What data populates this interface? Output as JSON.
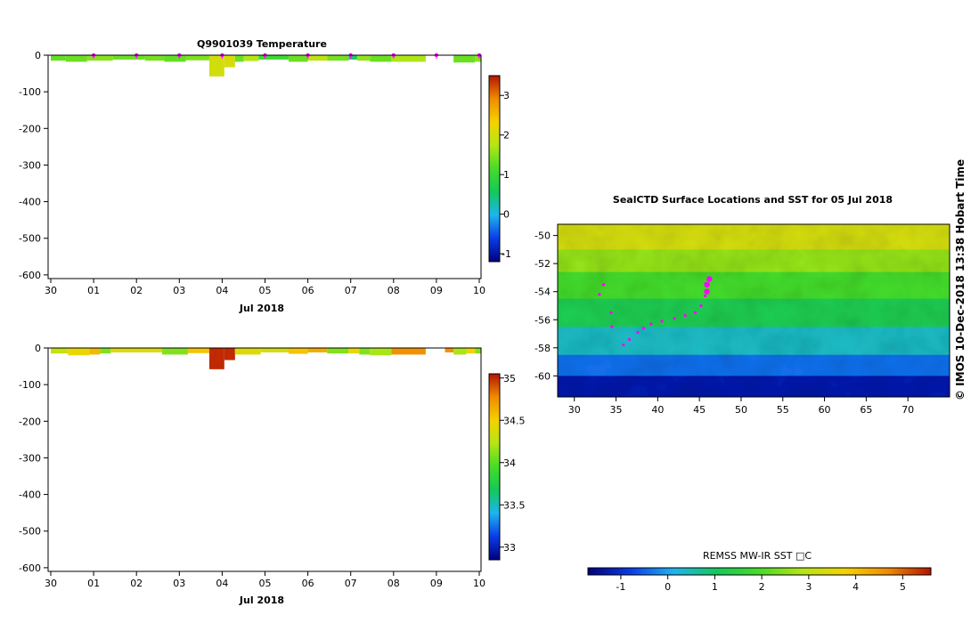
{
  "temp_panel": {
    "title": "Q9901039  Temperature",
    "xlabel": "Jul 2018",
    "x_ticks": [
      "30",
      "01",
      "02",
      "03",
      "04",
      "05",
      "06",
      "07",
      "08",
      "09",
      "10"
    ],
    "y_ticks": [
      "0",
      "-100",
      "-200",
      "-300",
      "-400",
      "-500",
      "-600"
    ],
    "cbar_ticks": [
      "3",
      "2",
      "1",
      "0",
      "-1"
    ]
  },
  "sal_panel": {
    "xlabel": "Jul 2018",
    "x_ticks": [
      "30",
      "01",
      "02",
      "03",
      "04",
      "05",
      "06",
      "07",
      "08",
      "09",
      "10"
    ],
    "y_ticks": [
      "0",
      "-100",
      "-200",
      "-300",
      "-400",
      "-500",
      "-600"
    ],
    "cbar_ticks": [
      "35",
      "34.5",
      "34",
      "33.5",
      "33"
    ]
  },
  "map_panel": {
    "title": "SealCTD Surface Locations and SST for 05 Jul 2018",
    "lon_ticks": [
      "30",
      "35",
      "40",
      "45",
      "50",
      "55",
      "60",
      "65",
      "70"
    ],
    "lat_ticks": [
      "-50",
      "-52",
      "-54",
      "-56",
      "-58",
      "-60"
    ],
    "cbar_label": "REMSS MW-IR SST □C",
    "cbar_ticks": [
      "-1",
      "0",
      "1",
      "2",
      "3",
      "4",
      "5"
    ]
  },
  "credit": "©  IMOS 10-Dec-2018 13:38 Hobart Time",
  "colors": {
    "track_dots": "#ff00ff",
    "scale": [
      "#00007f",
      "#0a3ce6",
      "#1eb4f0",
      "#14c85a",
      "#46dc28",
      "#b4e614",
      "#f5d200",
      "#f08c00",
      "#b41400"
    ]
  },
  "chart_data": [
    {
      "type": "heatmap",
      "title": "Q9901039  Temperature",
      "xlabel": "Jul 2018",
      "x_range": [
        "2018-06-30",
        "2018-07-10"
      ],
      "ylim": [
        -610,
        0
      ],
      "colorbar": {
        "range": [
          -1.2,
          3.5
        ],
        "ticks": [
          -1,
          0,
          1,
          2,
          3
        ]
      },
      "profiles": [
        {
          "start_day": 0.0,
          "end_day": 0.35,
          "depth": -15,
          "value": 1.3
        },
        {
          "start_day": 0.35,
          "end_day": 0.85,
          "depth": -18,
          "value": 1.35
        },
        {
          "start_day": 0.85,
          "end_day": 1.45,
          "depth": -15,
          "value": 1.5
        },
        {
          "start_day": 1.45,
          "end_day": 2.2,
          "depth": -12,
          "value": 1.35
        },
        {
          "start_day": 2.2,
          "end_day": 2.65,
          "depth": -15,
          "value": 1.4
        },
        {
          "start_day": 2.65,
          "end_day": 3.15,
          "depth": -18,
          "value": 1.3
        },
        {
          "start_day": 3.15,
          "end_day": 3.7,
          "depth": -14,
          "value": 1.45
        },
        {
          "start_day": 3.7,
          "end_day": 4.05,
          "depth": -58,
          "value": 2.0
        },
        {
          "start_day": 4.05,
          "end_day": 4.3,
          "depth": -33,
          "value": 2.05
        },
        {
          "start_day": 4.3,
          "end_day": 4.5,
          "depth": -18,
          "value": 1.35
        },
        {
          "start_day": 4.5,
          "end_day": 4.85,
          "depth": -16,
          "value": 1.75
        },
        {
          "start_day": 4.85,
          "end_day": 5.55,
          "depth": -12,
          "value": 1.05
        },
        {
          "start_day": 5.55,
          "end_day": 6.0,
          "depth": -18,
          "value": 1.35
        },
        {
          "start_day": 6.0,
          "end_day": 6.45,
          "depth": -15,
          "value": 1.85
        },
        {
          "start_day": 6.45,
          "end_day": 6.95,
          "depth": -15,
          "value": 1.4
        },
        {
          "start_day": 6.95,
          "end_day": 7.15,
          "depth": -12,
          "value": 0.5
        },
        {
          "start_day": 7.15,
          "end_day": 7.45,
          "depth": -15,
          "value": 1.55
        },
        {
          "start_day": 7.45,
          "end_day": 7.95,
          "depth": -18,
          "value": 1.35
        },
        {
          "start_day": 7.95,
          "end_day": 8.75,
          "depth": -18,
          "value": 1.7
        },
        {
          "start_day": 9.4,
          "end_day": 9.9,
          "depth": -20,
          "value": 1.35
        },
        {
          "start_day": 9.9,
          "end_day": 10.05,
          "depth": -18,
          "value": 1.5
        }
      ],
      "surface_markers_days": [
        1.0,
        2.0,
        3.0,
        4.0,
        5.0,
        6.0,
        7.0,
        8.0,
        9.0,
        10.0
      ]
    },
    {
      "type": "heatmap",
      "title": "",
      "xlabel": "Jul 2018",
      "x_range": [
        "2018-06-30",
        "2018-07-10"
      ],
      "ylim": [
        -610,
        0
      ],
      "colorbar": {
        "range": [
          32.85,
          35.05
        ],
        "ticks": [
          33,
          33.5,
          34,
          34.5,
          35
        ]
      },
      "profiles": [
        {
          "start_day": 0.0,
          "end_day": 0.4,
          "depth": -15,
          "value": 34.3
        },
        {
          "start_day": 0.4,
          "end_day": 0.9,
          "depth": -20,
          "value": 34.45
        },
        {
          "start_day": 0.9,
          "end_day": 1.15,
          "depth": -18,
          "value": 34.6
        },
        {
          "start_day": 1.15,
          "end_day": 1.4,
          "depth": -15,
          "value": 34.1
        },
        {
          "start_day": 1.4,
          "end_day": 2.6,
          "depth": -12,
          "value": 34.4
        },
        {
          "start_day": 2.6,
          "end_day": 3.2,
          "depth": -18,
          "value": 34.1
        },
        {
          "start_day": 3.2,
          "end_day": 3.7,
          "depth": -14,
          "value": 34.55
        },
        {
          "start_day": 3.7,
          "end_day": 4.05,
          "depth": -58,
          "value": 35.0
        },
        {
          "start_day": 4.05,
          "end_day": 4.3,
          "depth": -33,
          "value": 35.0
        },
        {
          "start_day": 4.3,
          "end_day": 4.9,
          "depth": -18,
          "value": 34.4
        },
        {
          "start_day": 4.9,
          "end_day": 5.55,
          "depth": -12,
          "value": 34.35
        },
        {
          "start_day": 5.55,
          "end_day": 6.0,
          "depth": -16,
          "value": 34.55
        },
        {
          "start_day": 6.0,
          "end_day": 6.45,
          "depth": -12,
          "value": 34.65
        },
        {
          "start_day": 6.45,
          "end_day": 6.95,
          "depth": -15,
          "value": 34.1
        },
        {
          "start_day": 6.95,
          "end_day": 7.2,
          "depth": -15,
          "value": 34.45
        },
        {
          "start_day": 7.2,
          "end_day": 7.45,
          "depth": -18,
          "value": 34.1
        },
        {
          "start_day": 7.45,
          "end_day": 7.95,
          "depth": -20,
          "value": 34.2
        },
        {
          "start_day": 7.95,
          "end_day": 8.75,
          "depth": -18,
          "value": 34.75
        },
        {
          "start_day": 9.2,
          "end_day": 9.4,
          "depth": -12,
          "value": 34.75
        },
        {
          "start_day": 9.4,
          "end_day": 9.7,
          "depth": -18,
          "value": 34.2
        },
        {
          "start_day": 9.7,
          "end_day": 9.9,
          "depth": -15,
          "value": 34.5
        },
        {
          "start_day": 9.9,
          "end_day": 10.05,
          "depth": -15,
          "value": 34.1
        }
      ]
    },
    {
      "type": "heatmap",
      "title": "SealCTD Surface Locations and SST for 05 Jul 2018",
      "xlim": [
        28,
        75
      ],
      "ylim": [
        -61.5,
        -49.2
      ],
      "colorbar": {
        "label": "REMSS MW-IR SST □C",
        "range": [
          -1.7,
          5.6
        ],
        "ticks": [
          -1,
          0,
          1,
          2,
          3,
          4,
          5
        ]
      },
      "sst_bands": [
        {
          "lat_top": -49.2,
          "lat_bottom": -51.0,
          "value": 3.3
        },
        {
          "lat_top": -51.0,
          "lat_bottom": -52.6,
          "value": 2.6
        },
        {
          "lat_top": -52.6,
          "lat_bottom": -54.5,
          "value": 1.9
        },
        {
          "lat_top": -54.5,
          "lat_bottom": -56.5,
          "value": 1.2
        },
        {
          "lat_top": -56.5,
          "lat_bottom": -58.5,
          "value": 0.4
        },
        {
          "lat_top": -58.5,
          "lat_bottom": -60.0,
          "value": -0.4
        },
        {
          "lat_top": -60.0,
          "lat_bottom": -61.5,
          "value": -1.3
        }
      ],
      "track_positions": [
        {
          "lon": 46.2,
          "lat": -53.1
        },
        {
          "lon": 45.9,
          "lat": -53.5
        },
        {
          "lon": 45.9,
          "lat": -54.0
        },
        {
          "lon": 45.7,
          "lat": -54.3
        },
        {
          "lon": 45.2,
          "lat": -55.0
        },
        {
          "lon": 44.5,
          "lat": -55.5
        },
        {
          "lon": 43.3,
          "lat": -55.7
        },
        {
          "lon": 42.0,
          "lat": -55.9
        },
        {
          "lon": 40.5,
          "lat": -56.1
        },
        {
          "lon": 39.2,
          "lat": -56.3
        },
        {
          "lon": 38.3,
          "lat": -56.6
        },
        {
          "lon": 37.6,
          "lat": -56.9
        },
        {
          "lon": 36.6,
          "lat": -57.4
        },
        {
          "lon": 35.9,
          "lat": -57.8
        },
        {
          "lon": 34.5,
          "lat": -56.5
        },
        {
          "lon": 34.4,
          "lat": -55.5
        },
        {
          "lon": 33.0,
          "lat": -54.2
        },
        {
          "lon": 33.5,
          "lat": -53.5
        }
      ]
    }
  ]
}
